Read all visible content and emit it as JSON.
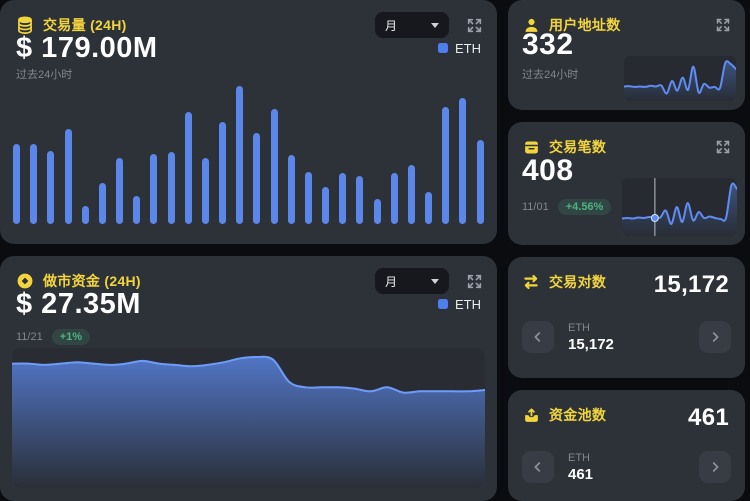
{
  "colors": {
    "accent_yellow": "#f2d53d",
    "chart_blue": "#5b87ea",
    "positive_green": "#4db381",
    "card_bg": "#2d3138",
    "page_bg": "#0a0c10"
  },
  "cards": {
    "volume": {
      "icon": "coins-stack-icon",
      "title": "交易量 (24H)",
      "value": "$ 179.00M",
      "subtitle": "过去24小时",
      "period": "月",
      "legend": "ETH"
    },
    "users": {
      "icon": "user-icon",
      "title": "用户地址数",
      "value": "332",
      "subtitle": "过去24小时"
    },
    "transactions": {
      "icon": "archive-icon",
      "title": "交易笔数",
      "value": "408",
      "date": "11/01",
      "change": "+4.56%"
    },
    "market_funds": {
      "icon": "coin-icon",
      "title": "做市资金 (24H)",
      "value": "$ 27.35M",
      "date": "11/21",
      "change": "+1%",
      "period": "月",
      "legend": "ETH"
    },
    "pairs": {
      "icon": "swap-icon",
      "title": "交易对数",
      "value": "15,172",
      "carousel": {
        "label": "ETH",
        "value": "15,172"
      }
    },
    "pools": {
      "icon": "pool-icon",
      "title": "资金池数",
      "value": "461",
      "carousel": {
        "label": "ETH",
        "value": "461"
      }
    }
  },
  "chart_data": [
    {
      "id": "volume-bars",
      "type": "bar",
      "title": "交易量 (24H)",
      "series_name": "ETH",
      "unit": "percent-of-max",
      "values": [
        58,
        58,
        53,
        69,
        13,
        30,
        48,
        20,
        51,
        52,
        81,
        48,
        74,
        100,
        66,
        83,
        50,
        38,
        27,
        37,
        35,
        18,
        37,
        43,
        23,
        85,
        91,
        61
      ],
      "color": "#5b87ea",
      "grid": false,
      "legend_position": "top-right"
    },
    {
      "id": "users-spark",
      "type": "line",
      "title": "用户地址数",
      "unit": "percent-of-max",
      "values": [
        31,
        32,
        30,
        31,
        30,
        33,
        31,
        34,
        12,
        46,
        20,
        55,
        22,
        85,
        15,
        38,
        28,
        30,
        27,
        95,
        92,
        78
      ],
      "color": "#5f8df5",
      "grid": false
    },
    {
      "id": "tx-spark",
      "type": "line",
      "title": "交易笔数",
      "unit": "percent-of-max",
      "values": [
        29,
        30,
        29,
        31,
        30,
        32,
        30,
        31,
        45,
        18,
        52,
        22,
        60,
        25,
        42,
        30,
        33,
        30,
        28,
        30,
        96,
        88
      ],
      "cursor_index": 6,
      "color": "#5f8df5",
      "grid": false
    },
    {
      "id": "funds-area",
      "type": "area",
      "title": "做市资金 (24H)",
      "series_name": "ETH",
      "unit": "percent-of-max",
      "values": [
        92,
        92,
        91,
        92,
        93,
        92,
        91,
        92,
        94,
        92,
        91,
        90,
        91,
        93,
        96,
        97,
        95,
        78,
        74,
        74,
        74,
        73,
        71,
        74,
        70,
        71,
        71,
        71,
        71,
        72
      ],
      "color": "#5b87ea",
      "line_color": "#6f9cfa",
      "grid": false,
      "legend_position": "top-right"
    }
  ]
}
